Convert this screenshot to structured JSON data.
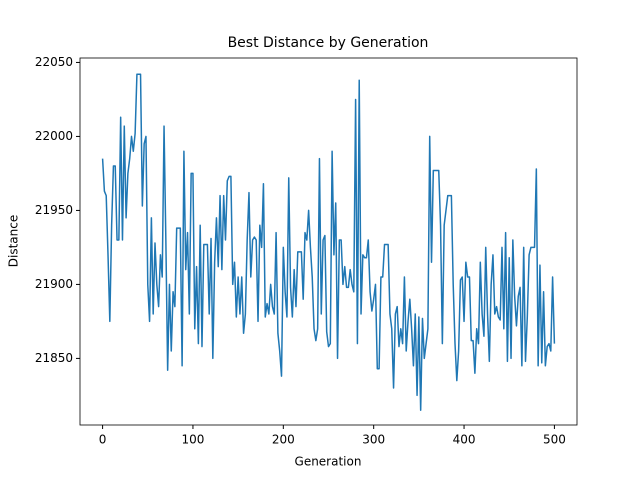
{
  "chart_data": {
    "type": "line",
    "title": "Best Distance by Generation",
    "x_label": "Generation",
    "y_label": "Distance",
    "xlim": [
      -25,
      525
    ],
    "ylim": [
      21805,
      22053
    ],
    "xticks": [
      0,
      100,
      200,
      300,
      400,
      500
    ],
    "yticks": [
      21850,
      21900,
      21950,
      22000,
      22050
    ],
    "x": [
      0,
      2,
      4,
      6,
      8,
      10,
      12,
      14,
      16,
      18,
      20,
      22,
      24,
      26,
      28,
      30,
      32,
      34,
      36,
      38,
      40,
      42,
      44,
      46,
      48,
      50,
      52,
      54,
      56,
      58,
      60,
      62,
      64,
      66,
      68,
      70,
      72,
      74,
      76,
      78,
      80,
      82,
      84,
      86,
      88,
      90,
      92,
      94,
      96,
      98,
      100,
      102,
      104,
      106,
      108,
      110,
      112,
      114,
      116,
      118,
      120,
      122,
      124,
      126,
      128,
      130,
      132,
      134,
      136,
      138,
      140,
      142,
      144,
      146,
      148,
      150,
      152,
      154,
      156,
      158,
      160,
      162,
      164,
      166,
      168,
      170,
      172,
      174,
      176,
      178,
      180,
      182,
      184,
      186,
      188,
      190,
      192,
      194,
      196,
      198,
      200,
      202,
      204,
      206,
      208,
      210,
      212,
      214,
      216,
      218,
      220,
      222,
      224,
      226,
      228,
      230,
      232,
      234,
      236,
      238,
      240,
      242,
      244,
      246,
      248,
      250,
      252,
      254,
      256,
      258,
      260,
      262,
      264,
      266,
      268,
      270,
      272,
      274,
      276,
      278,
      280,
      282,
      284,
      286,
      288,
      290,
      292,
      294,
      296,
      298,
      300,
      302,
      304,
      306,
      308,
      310,
      312,
      314,
      316,
      318,
      320,
      322,
      324,
      326,
      328,
      330,
      332,
      334,
      336,
      338,
      340,
      342,
      344,
      346,
      348,
      350,
      352,
      354,
      356,
      358,
      360,
      362,
      364,
      366,
      368,
      370,
      372,
      374,
      376,
      378,
      380,
      382,
      384,
      386,
      388,
      390,
      392,
      394,
      396,
      398,
      400,
      402,
      404,
      406,
      408,
      410,
      412,
      414,
      416,
      418,
      420,
      422,
      424,
      426,
      428,
      430,
      432,
      434,
      436,
      438,
      440,
      442,
      444,
      446,
      448,
      450,
      452,
      454,
      456,
      458,
      460,
      462,
      464,
      466,
      468,
      470,
      472,
      474,
      476,
      478,
      480,
      482,
      484,
      486,
      488,
      490,
      492,
      494,
      496,
      498,
      500
    ],
    "series": [
      {
        "name": "Best Distance",
        "color": "#1f77b4",
        "values": [
          21985,
          21963,
          21960,
          21920,
          21875,
          21940,
          21980,
          21980,
          21930,
          21930,
          22013,
          21930,
          22007,
          21945,
          21975,
          21985,
          22000,
          21990,
          22002,
          22042,
          22042,
          22042,
          21953,
          21995,
          22000,
          21900,
          21875,
          21945,
          21880,
          21928,
          21900,
          21885,
          21920,
          21905,
          22007,
          21930,
          21842,
          21900,
          21855,
          21895,
          21885,
          21938,
          21938,
          21938,
          21845,
          21990,
          21910,
          21935,
          21880,
          21975,
          21975,
          21870,
          21912,
          21860,
          21940,
          21858,
          21927,
          21927,
          21927,
          21880,
          21931,
          21850,
          21915,
          21945,
          21912,
          21960,
          21910,
          21960,
          21930,
          21970,
          21973,
          21973,
          21900,
          21915,
          21878,
          21905,
          21880,
          21905,
          21867,
          21880,
          21930,
          21962,
          21905,
          21930,
          21932,
          21930,
          21875,
          21940,
          21925,
          21968,
          21878,
          21887,
          21880,
          21900,
          21885,
          21880,
          21935,
          21867,
          21855,
          21838,
          21925,
          21895,
          21878,
          21972,
          21898,
          21878,
          21910,
          21885,
          21922,
          21922,
          21922,
          21890,
          21935,
          21930,
          21950,
          21925,
          21905,
          21870,
          21862,
          21870,
          21985,
          21880,
          21930,
          21933,
          21868,
          21858,
          21860,
          21990,
          21920,
          21955,
          21850,
          21930,
          21930,
          21900,
          21912,
          21898,
          21898,
          21910,
          21900,
          21895,
          22025,
          21860,
          22038,
          21880,
          21920,
          21918,
          21918,
          21930,
          21895,
          21882,
          21890,
          21900,
          21843,
          21843,
          21905,
          21905,
          21927,
          21927,
          21927,
          21880,
          21870,
          21830,
          21880,
          21885,
          21858,
          21870,
          21860,
          21905,
          21855,
          21875,
          21890,
          21870,
          21845,
          21880,
          21825,
          21878,
          21815,
          21877,
          21850,
          21860,
          21870,
          22000,
          21915,
          21977,
          21977,
          21977,
          21977,
          21940,
          21860,
          21940,
          21950,
          21960,
          21960,
          21960,
          21900,
          21860,
          21835,
          21855,
          21903,
          21905,
          21875,
          21915,
          21905,
          21905,
          21862,
          21862,
          21840,
          21870,
          21860,
          21915,
          21880,
          21865,
          21925,
          21880,
          21848,
          21900,
          21920,
          21880,
          21885,
          21878,
          21876,
          21925,
          21870,
          21935,
          21848,
          21918,
          21850,
          21930,
          21892,
          21872,
          21892,
          21898,
          21845,
          21925,
          21848,
          21878,
          21920,
          21925,
          21925,
          21925,
          21978,
          21845,
          21913,
          21847,
          21895,
          21845,
          21858,
          21860,
          21855,
          21905,
          21860
        ]
      }
    ]
  }
}
